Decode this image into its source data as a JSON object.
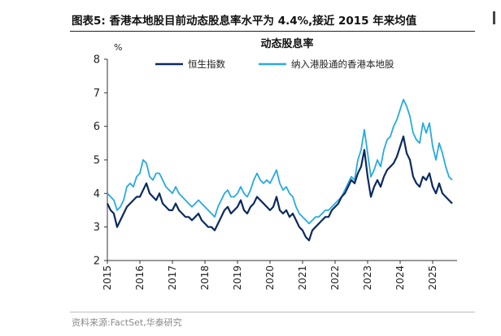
{
  "header": {
    "figure_title": "图表5:  香港本地股目前动态股息率水平为 4.4%,接近 2015 年来均值"
  },
  "footer": {
    "source": "资料来源:FactSet,华泰研究"
  },
  "chart_data": {
    "type": "line",
    "title": "动态股息率",
    "ylabel": "%",
    "xlabel": "",
    "ylim": [
      2,
      8
    ],
    "yticks": [
      2,
      3,
      4,
      5,
      6,
      7,
      8
    ],
    "xlim": [
      2015.0,
      2025.75
    ],
    "xticks": [
      "2015",
      "2016",
      "2017",
      "2018",
      "2019",
      "2020",
      "2021",
      "2022",
      "2023",
      "2024",
      "2025"
    ],
    "grid": false,
    "legend": "top-center",
    "colors": {
      "series_1": "#0b2a5f",
      "series_2": "#27aae1"
    },
    "series": [
      {
        "name": "恒生指数",
        "x": [
          2015.0,
          2015.1,
          2015.2,
          2015.3,
          2015.4,
          2015.5,
          2015.6,
          2015.7,
          2015.8,
          2015.9,
          2016.0,
          2016.1,
          2016.2,
          2016.3,
          2016.4,
          2016.5,
          2016.6,
          2016.7,
          2016.8,
          2016.9,
          2017.0,
          2017.1,
          2017.2,
          2017.3,
          2017.4,
          2017.5,
          2017.6,
          2017.7,
          2017.8,
          2017.9,
          2018.0,
          2018.1,
          2018.2,
          2018.3,
          2018.4,
          2018.5,
          2018.6,
          2018.7,
          2018.8,
          2018.9,
          2019.0,
          2019.1,
          2019.2,
          2019.3,
          2019.4,
          2019.5,
          2019.6,
          2019.7,
          2019.8,
          2019.9,
          2020.0,
          2020.1,
          2020.2,
          2020.3,
          2020.4,
          2020.5,
          2020.6,
          2020.7,
          2020.8,
          2020.9,
          2021.0,
          2021.1,
          2021.2,
          2021.3,
          2021.4,
          2021.5,
          2021.6,
          2021.7,
          2021.8,
          2021.9,
          2022.0,
          2022.1,
          2022.2,
          2022.3,
          2022.4,
          2022.5,
          2022.6,
          2022.7,
          2022.8,
          2022.9,
          2023.0,
          2023.1,
          2023.2,
          2023.3,
          2023.4,
          2023.5,
          2023.6,
          2023.7,
          2023.8,
          2023.9,
          2024.0,
          2024.1,
          2024.2,
          2024.3,
          2024.4,
          2024.5,
          2024.6,
          2024.7,
          2024.8,
          2024.9,
          2025.0,
          2025.1,
          2025.2,
          2025.3,
          2025.4,
          2025.5,
          2025.6
        ],
        "y": [
          3.7,
          3.5,
          3.4,
          3.0,
          3.2,
          3.4,
          3.6,
          3.7,
          3.8,
          3.9,
          3.9,
          4.1,
          4.3,
          4.0,
          3.9,
          3.8,
          4.0,
          3.7,
          3.6,
          3.5,
          3.5,
          3.7,
          3.5,
          3.4,
          3.3,
          3.3,
          3.2,
          3.3,
          3.4,
          3.2,
          3.1,
          3.0,
          3.0,
          2.9,
          3.1,
          3.3,
          3.5,
          3.6,
          3.4,
          3.5,
          3.6,
          3.8,
          3.5,
          3.4,
          3.6,
          3.7,
          3.9,
          3.8,
          3.7,
          3.6,
          3.5,
          3.6,
          3.9,
          3.5,
          3.4,
          3.5,
          3.3,
          3.4,
          3.2,
          3.0,
          2.9,
          2.7,
          2.6,
          2.9,
          3.0,
          3.1,
          3.2,
          3.3,
          3.3,
          3.5,
          3.6,
          3.7,
          3.9,
          4.0,
          4.2,
          4.4,
          4.3,
          4.6,
          4.8,
          5.3,
          4.5,
          3.9,
          4.2,
          4.4,
          4.2,
          4.5,
          4.7,
          4.8,
          4.9,
          5.1,
          5.4,
          5.7,
          5.2,
          5.0,
          4.5,
          4.3,
          4.2,
          4.5,
          4.4,
          4.6,
          4.2,
          4.0,
          4.3,
          4.0,
          3.9,
          3.8,
          3.7
        ]
      },
      {
        "name": "纳入港股通的香港本地股",
        "x": [
          2015.0,
          2015.1,
          2015.2,
          2015.3,
          2015.4,
          2015.5,
          2015.6,
          2015.7,
          2015.8,
          2015.9,
          2016.0,
          2016.1,
          2016.2,
          2016.3,
          2016.4,
          2016.5,
          2016.6,
          2016.7,
          2016.8,
          2016.9,
          2017.0,
          2017.1,
          2017.2,
          2017.3,
          2017.4,
          2017.5,
          2017.6,
          2017.7,
          2017.8,
          2017.9,
          2018.0,
          2018.1,
          2018.2,
          2018.3,
          2018.4,
          2018.5,
          2018.6,
          2018.7,
          2018.8,
          2018.9,
          2019.0,
          2019.1,
          2019.2,
          2019.3,
          2019.4,
          2019.5,
          2019.6,
          2019.7,
          2019.8,
          2019.9,
          2020.0,
          2020.1,
          2020.2,
          2020.3,
          2020.4,
          2020.5,
          2020.6,
          2020.7,
          2020.8,
          2020.9,
          2021.0,
          2021.1,
          2021.2,
          2021.3,
          2021.4,
          2021.5,
          2021.6,
          2021.7,
          2021.8,
          2021.9,
          2022.0,
          2022.1,
          2022.2,
          2022.3,
          2022.4,
          2022.5,
          2022.6,
          2022.7,
          2022.8,
          2022.9,
          2023.0,
          2023.1,
          2023.2,
          2023.3,
          2023.4,
          2023.5,
          2023.6,
          2023.7,
          2023.8,
          2023.9,
          2024.0,
          2024.1,
          2024.2,
          2024.3,
          2024.4,
          2024.5,
          2024.6,
          2024.7,
          2024.8,
          2024.9,
          2025.0,
          2025.1,
          2025.2,
          2025.3,
          2025.4,
          2025.5,
          2025.6
        ],
        "y": [
          4.0,
          3.9,
          3.8,
          3.5,
          3.6,
          3.8,
          4.2,
          4.3,
          4.2,
          4.5,
          4.6,
          5.0,
          4.9,
          4.5,
          4.4,
          4.6,
          4.6,
          4.4,
          4.2,
          4.1,
          4.0,
          4.2,
          4.0,
          3.9,
          3.8,
          3.7,
          3.6,
          3.7,
          3.8,
          3.7,
          3.6,
          3.5,
          3.4,
          3.3,
          3.6,
          3.8,
          4.0,
          4.1,
          3.9,
          3.9,
          4.0,
          4.2,
          4.0,
          3.9,
          4.1,
          4.4,
          4.6,
          4.4,
          4.3,
          4.4,
          4.3,
          4.5,
          4.7,
          4.3,
          4.1,
          4.2,
          4.0,
          3.9,
          3.6,
          3.4,
          3.3,
          3.2,
          3.1,
          3.2,
          3.3,
          3.3,
          3.4,
          3.5,
          3.5,
          3.6,
          3.7,
          3.8,
          3.9,
          4.1,
          4.3,
          4.5,
          4.4,
          5.0,
          5.3,
          5.9,
          5.2,
          4.5,
          4.7,
          5.0,
          4.8,
          5.3,
          5.6,
          5.7,
          6.0,
          6.2,
          6.5,
          6.8,
          6.6,
          6.3,
          5.8,
          5.6,
          5.5,
          6.1,
          5.8,
          6.1,
          5.4,
          5.0,
          5.5,
          5.2,
          4.8,
          4.5,
          4.4
        ]
      }
    ]
  }
}
